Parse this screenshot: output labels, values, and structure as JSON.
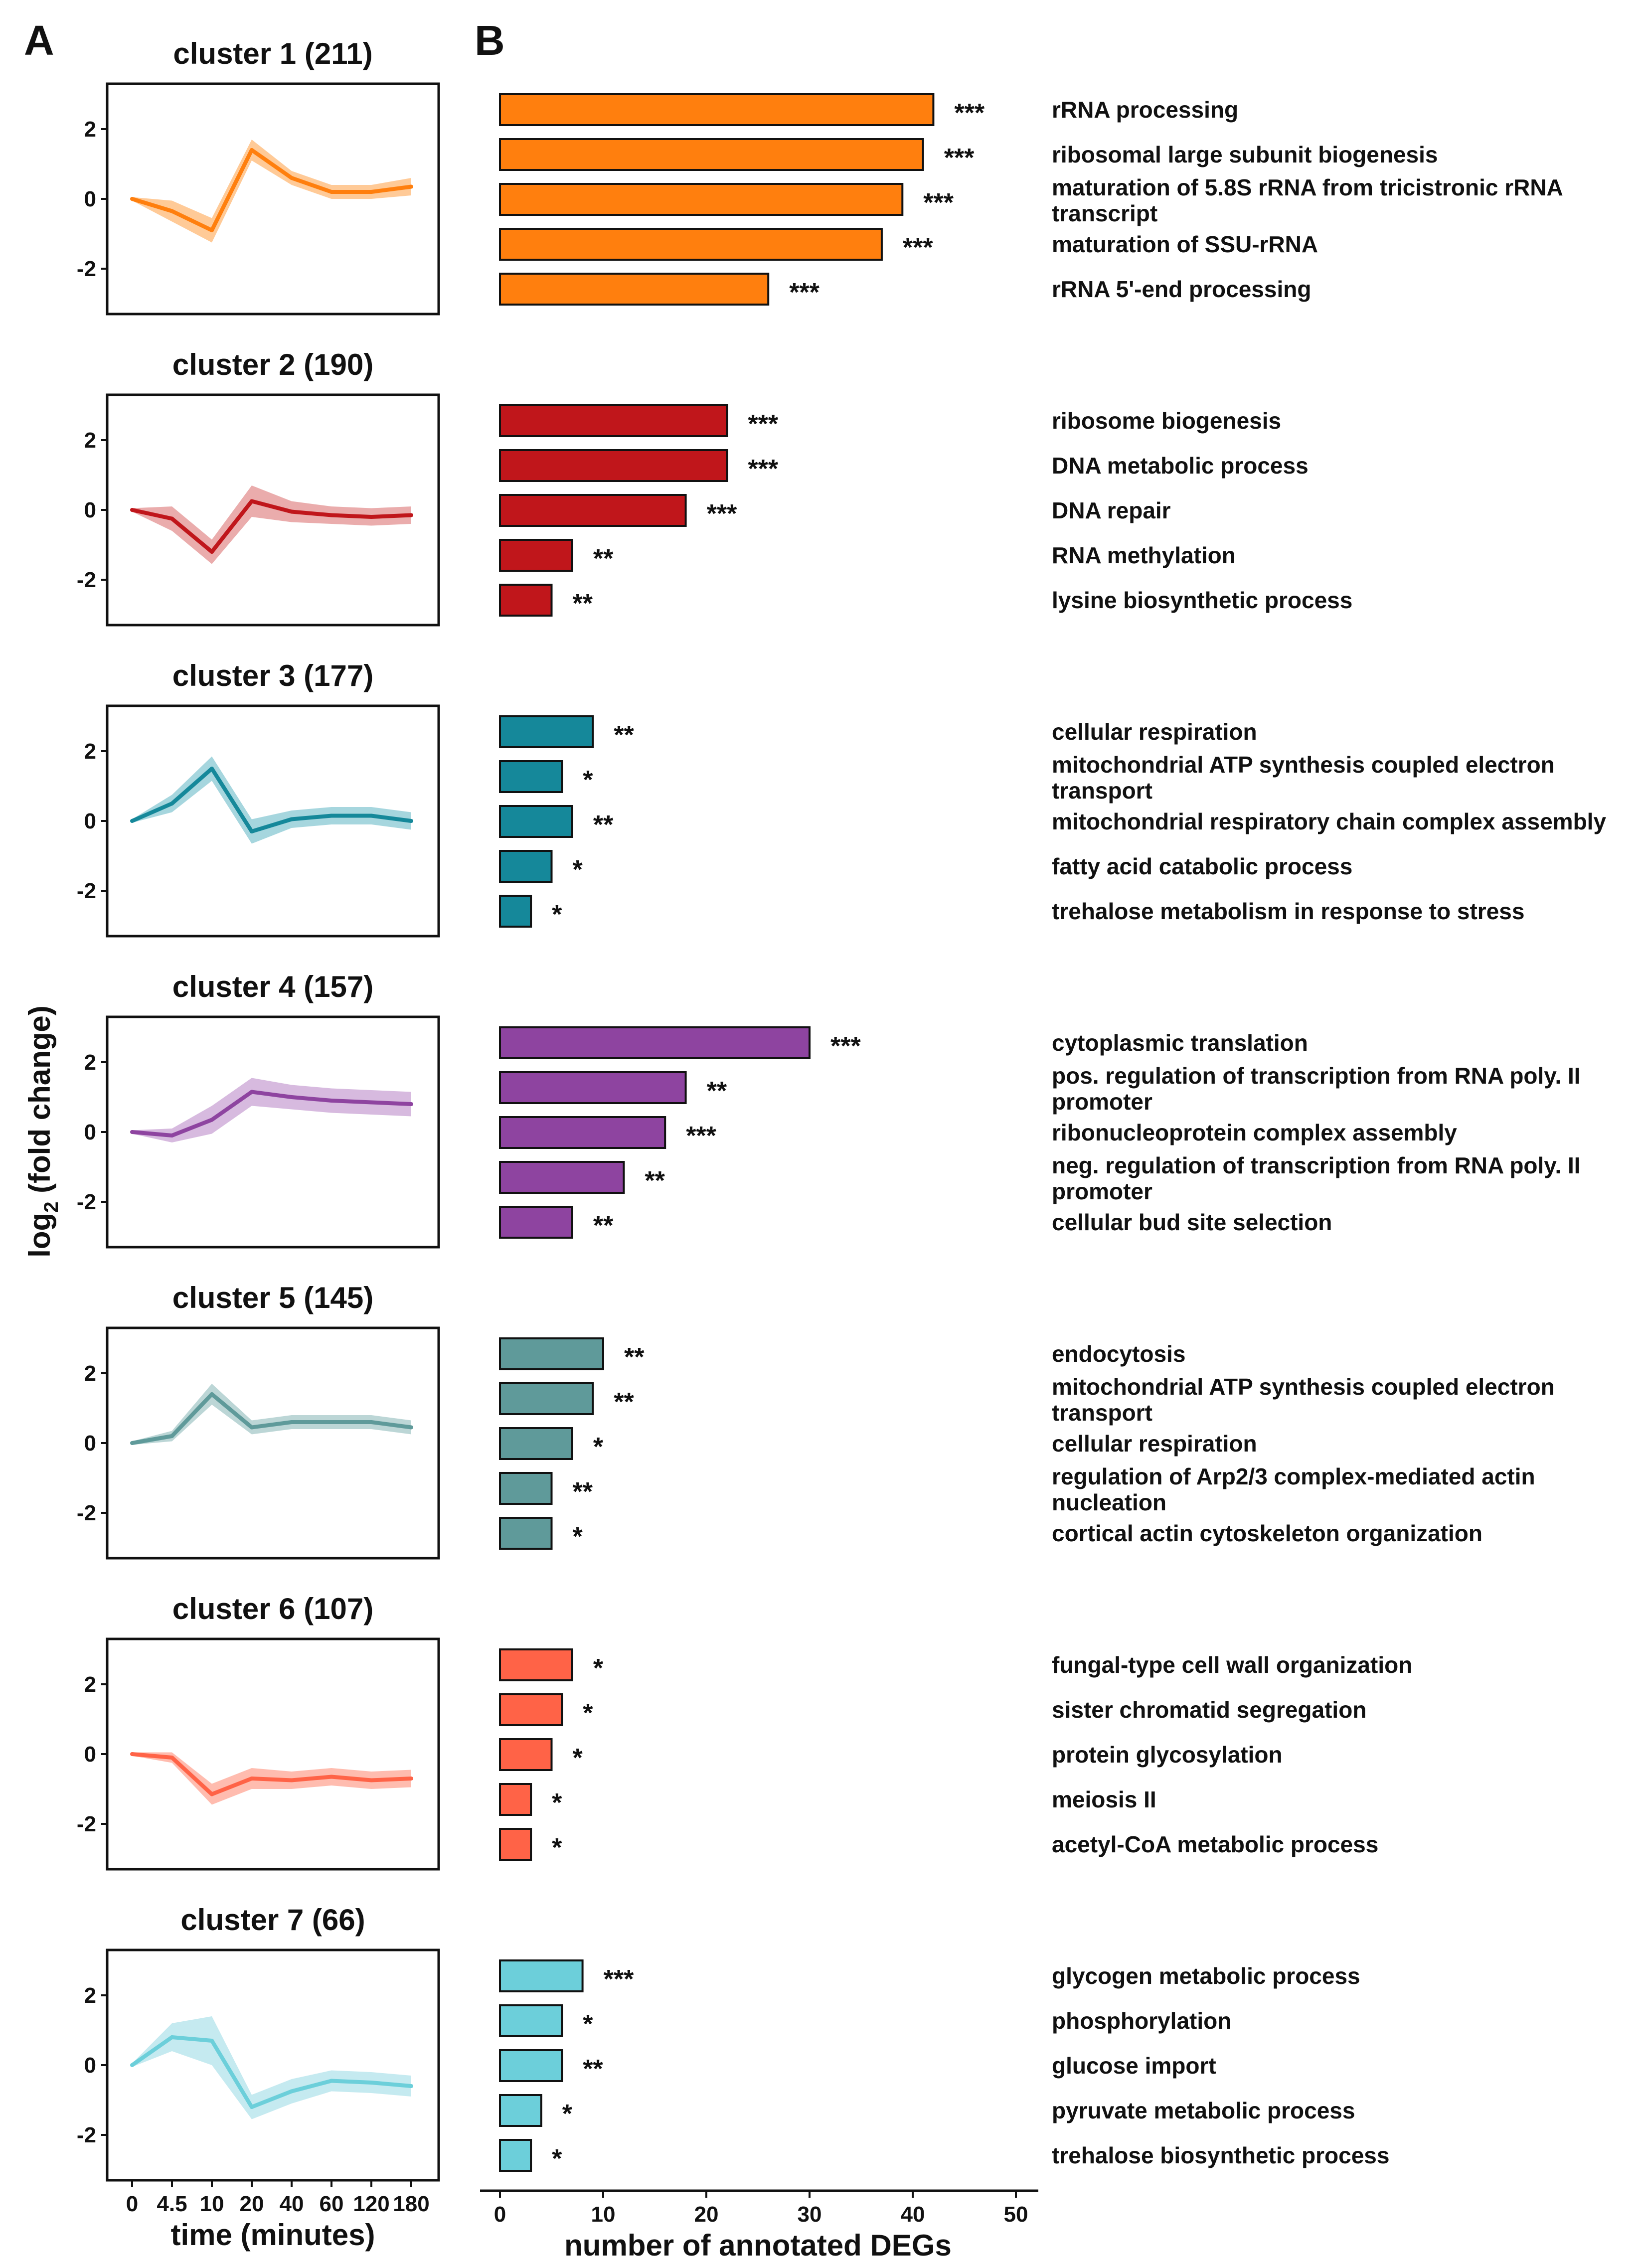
{
  "panel_labels": {
    "a": "A",
    "b": "B"
  },
  "chart_data": [
    {
      "type": "line",
      "panel": "A",
      "ylabel_main": "log",
      "ylabel_sub": "2",
      "ylabel_rest": " (fold change)",
      "xlabel": "time (minutes)",
      "x": [
        "0",
        "4.5",
        "10",
        "20",
        "40",
        "60",
        "120",
        "180"
      ],
      "ylim": [
        -3.3,
        3.3
      ],
      "yticks": [
        2,
        0,
        -2
      ],
      "clusters": [
        {
          "title": "cluster 1 (211)",
          "color": "#FF7F0E",
          "band": "#FFC48C",
          "values": [
            0,
            -0.35,
            -0.9,
            1.4,
            0.6,
            0.2,
            0.2,
            0.35
          ],
          "spread": [
            0.05,
            0.3,
            0.35,
            0.3,
            0.2,
            0.2,
            0.2,
            0.25
          ]
        },
        {
          "title": "cluster 2 (190)",
          "color": "#C0161B",
          "band": "#E8A3A3",
          "values": [
            0,
            -0.25,
            -1.2,
            0.25,
            -0.05,
            -0.15,
            -0.2,
            -0.15
          ],
          "spread": [
            0.05,
            0.35,
            0.35,
            0.45,
            0.3,
            0.25,
            0.25,
            0.25
          ]
        },
        {
          "title": "cluster 3 (177)",
          "color": "#15889A",
          "band": "#9CD1DA",
          "values": [
            0,
            0.5,
            1.5,
            -0.3,
            0.05,
            0.15,
            0.15,
            0.0
          ],
          "spread": [
            0.05,
            0.25,
            0.35,
            0.35,
            0.25,
            0.25,
            0.25,
            0.25
          ]
        },
        {
          "title": "cluster 4 (157)",
          "color": "#8E44A0",
          "band": "#D3B3DC",
          "values": [
            0,
            -0.1,
            0.35,
            1.15,
            1.0,
            0.9,
            0.85,
            0.8
          ],
          "spread": [
            0.05,
            0.2,
            0.4,
            0.4,
            0.35,
            0.35,
            0.35,
            0.35
          ]
        },
        {
          "title": "cluster 5 (145)",
          "color": "#5F9A9A",
          "band": "#B5D2D2",
          "values": [
            0,
            0.2,
            1.4,
            0.45,
            0.6,
            0.6,
            0.6,
            0.45
          ],
          "spread": [
            0.05,
            0.15,
            0.3,
            0.2,
            0.2,
            0.2,
            0.2,
            0.2
          ]
        },
        {
          "title": "cluster 6 (107)",
          "color": "#FF6347",
          "band": "#FFB5A6",
          "values": [
            0,
            -0.1,
            -1.15,
            -0.7,
            -0.75,
            -0.65,
            -0.75,
            -0.7
          ],
          "spread": [
            0.05,
            0.15,
            0.3,
            0.3,
            0.25,
            0.25,
            0.25,
            0.25
          ]
        },
        {
          "title": "cluster 7 (66)",
          "color": "#6CCFDA",
          "band": "#BFE8EE",
          "values": [
            0,
            0.8,
            0.7,
            -1.2,
            -0.75,
            -0.45,
            -0.5,
            -0.6
          ],
          "spread": [
            0.05,
            0.4,
            0.7,
            0.35,
            0.35,
            0.3,
            0.3,
            0.3
          ]
        }
      ]
    },
    {
      "type": "bar",
      "orientation": "horizontal",
      "panel": "B",
      "xlabel": "number of annotated DEGs",
      "xlim": [
        0,
        50
      ],
      "xticks": [
        "0",
        "10",
        "20",
        "30",
        "40",
        "50"
      ],
      "groups": [
        {
          "color": "#FF7F0E",
          "bars": [
            {
              "term": [
                "rRNA processing"
              ],
              "value": 42,
              "stars": "***"
            },
            {
              "term": [
                "ribosomal large subunit biogenesis"
              ],
              "value": 41,
              "stars": "***"
            },
            {
              "term": [
                "maturation of 5.8S rRNA from tricistronic rRNA",
                "transcript"
              ],
              "value": 39,
              "stars": "***"
            },
            {
              "term": [
                "maturation of SSU-rRNA"
              ],
              "value": 37,
              "stars": "***"
            },
            {
              "term": [
                "rRNA 5'-end processing"
              ],
              "value": 26,
              "stars": "***"
            }
          ]
        },
        {
          "color": "#C0161B",
          "bars": [
            {
              "term": [
                "ribosome biogenesis"
              ],
              "value": 22,
              "stars": "***"
            },
            {
              "term": [
                "DNA metabolic process"
              ],
              "value": 22,
              "stars": "***"
            },
            {
              "term": [
                "DNA repair"
              ],
              "value": 18,
              "stars": "***"
            },
            {
              "term": [
                "RNA methylation"
              ],
              "value": 7,
              "stars": "**"
            },
            {
              "term": [
                "lysine biosynthetic process"
              ],
              "value": 5,
              "stars": "**"
            }
          ]
        },
        {
          "color": "#15889A",
          "bars": [
            {
              "term": [
                "cellular respiration"
              ],
              "value": 9,
              "stars": "**"
            },
            {
              "term": [
                "mitochondrial ATP synthesis coupled electron",
                "transport"
              ],
              "value": 6,
              "stars": "*"
            },
            {
              "term": [
                "mitochondrial respiratory chain complex assembly"
              ],
              "value": 7,
              "stars": "**"
            },
            {
              "term": [
                "fatty acid catabolic process"
              ],
              "value": 5,
              "stars": "*"
            },
            {
              "term": [
                "trehalose metabolism in response to stress"
              ],
              "value": 3,
              "stars": "*"
            }
          ]
        },
        {
          "color": "#8E44A0",
          "bars": [
            {
              "term": [
                "cytoplasmic translation"
              ],
              "value": 30,
              "stars": "***"
            },
            {
              "term": [
                "pos. regulation of transcription from RNA poly. II",
                "promoter"
              ],
              "value": 18,
              "stars": "**"
            },
            {
              "term": [
                "ribonucleoprotein complex assembly"
              ],
              "value": 16,
              "stars": "***"
            },
            {
              "term": [
                "neg. regulation of transcription from RNA poly. II",
                "promoter"
              ],
              "value": 12,
              "stars": "**"
            },
            {
              "term": [
                "cellular bud site selection"
              ],
              "value": 7,
              "stars": "**"
            }
          ]
        },
        {
          "color": "#5F9A9A",
          "bars": [
            {
              "term": [
                "endocytosis"
              ],
              "value": 10,
              "stars": "**"
            },
            {
              "term": [
                "mitochondrial ATP synthesis coupled electron",
                "transport"
              ],
              "value": 9,
              "stars": "**"
            },
            {
              "term": [
                "cellular respiration"
              ],
              "value": 7,
              "stars": "*"
            },
            {
              "term": [
                "regulation of Arp2/3 complex-mediated actin",
                "nucleation"
              ],
              "value": 5,
              "stars": "**"
            },
            {
              "term": [
                "cortical actin cytoskeleton organization"
              ],
              "value": 5,
              "stars": "*"
            }
          ]
        },
        {
          "color": "#FF6347",
          "bars": [
            {
              "term": [
                "fungal-type cell wall organization"
              ],
              "value": 7,
              "stars": "*"
            },
            {
              "term": [
                "sister chromatid segregation"
              ],
              "value": 6,
              "stars": "*"
            },
            {
              "term": [
                "protein glycosylation"
              ],
              "value": 5,
              "stars": "*"
            },
            {
              "term": [
                "meiosis II"
              ],
              "value": 3,
              "stars": "*"
            },
            {
              "term": [
                "acetyl-CoA metabolic process"
              ],
              "value": 3,
              "stars": "*"
            }
          ]
        },
        {
          "color": "#6CCFDA",
          "bars": [
            {
              "term": [
                "glycogen metabolic process"
              ],
              "value": 8,
              "stars": "***"
            },
            {
              "term": [
                "phosphorylation"
              ],
              "value": 6,
              "stars": "*"
            },
            {
              "term": [
                "glucose import"
              ],
              "value": 6,
              "stars": "**"
            },
            {
              "term": [
                "pyruvate metabolic process"
              ],
              "value": 4,
              "stars": "*"
            },
            {
              "term": [
                "trehalose biosynthetic process"
              ],
              "value": 3,
              "stars": "*"
            }
          ]
        }
      ]
    }
  ]
}
